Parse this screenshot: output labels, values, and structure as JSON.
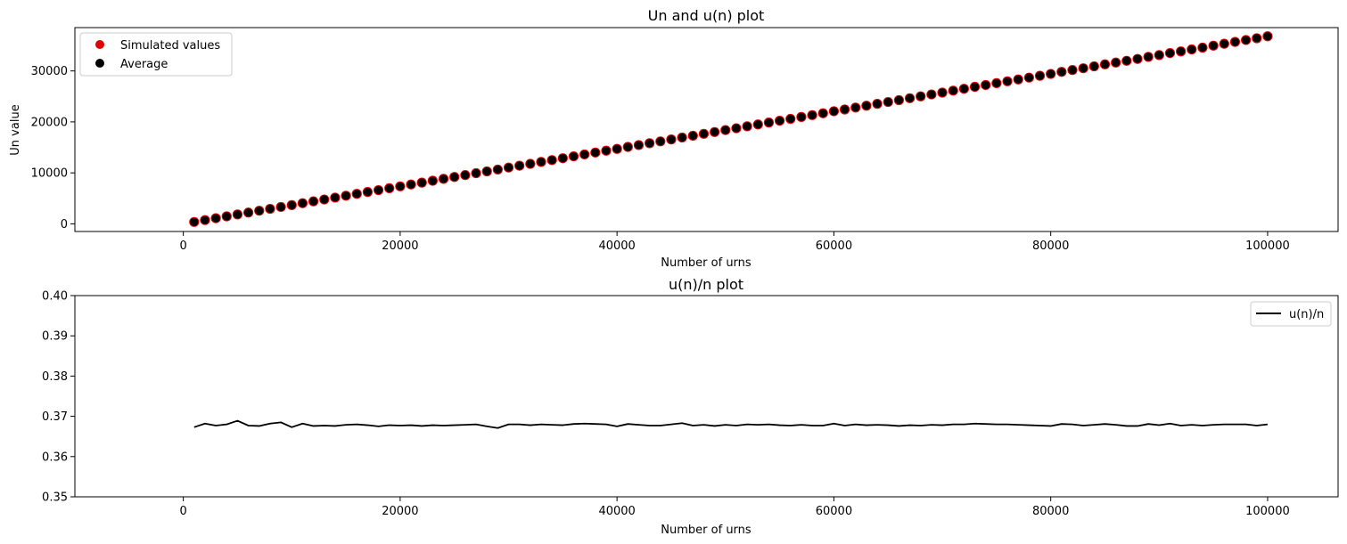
{
  "colors": {
    "simulated": "#e00000",
    "average": "#000000",
    "ratio_line": "#000000"
  },
  "chart_data": [
    {
      "type": "scatter",
      "title": "Un and u(n) plot",
      "xlabel": "Number of urns",
      "ylabel": "Un value",
      "xlim": [
        -10000,
        106500
      ],
      "ylim": [
        -1500,
        38500
      ],
      "xticks": [
        0,
        20000,
        40000,
        60000,
        80000,
        100000
      ],
      "xtick_labels": [
        "0",
        "20000",
        "40000",
        "60000",
        "80000",
        "100000"
      ],
      "yticks": [
        0,
        10000,
        20000,
        30000
      ],
      "ytick_labels": [
        "0",
        "10000",
        "20000",
        "30000"
      ],
      "legend": "top-left",
      "legend_entries": [
        "Simulated values",
        "Average"
      ],
      "x_start": 1000,
      "x_step": 1000,
      "slope": 0.368,
      "series": [
        {
          "name": "Simulated values",
          "color": "#e00000"
        },
        {
          "name": "Average",
          "color": "#000000"
        }
      ]
    },
    {
      "type": "line",
      "title": "u(n)/n plot",
      "xlabel": "Number of urns",
      "ylabel": "",
      "xlim": [
        -10000,
        106500
      ],
      "ylim": [
        0.35,
        0.4
      ],
      "xticks": [
        0,
        20000,
        40000,
        60000,
        80000,
        100000
      ],
      "xtick_labels": [
        "0",
        "20000",
        "40000",
        "60000",
        "80000",
        "100000"
      ],
      "yticks": [
        0.35,
        0.36,
        0.37,
        0.38,
        0.39,
        0.4
      ],
      "ytick_labels": [
        "0.35",
        "0.36",
        "0.37",
        "0.38",
        "0.39",
        "0.40"
      ],
      "legend": "top-right",
      "legend_entries": [
        "u(n)/n"
      ],
      "x_start": 1000,
      "x_step": 1000,
      "series": [
        {
          "name": "u(n)/n",
          "color": "#000000",
          "values": [
            0.3673,
            0.3682,
            0.3677,
            0.368,
            0.3689,
            0.3677,
            0.3676,
            0.3682,
            0.3685,
            0.3673,
            0.3682,
            0.3676,
            0.3677,
            0.3676,
            0.3679,
            0.368,
            0.3678,
            0.3675,
            0.3678,
            0.3677,
            0.3678,
            0.3676,
            0.3678,
            0.3677,
            0.3678,
            0.3679,
            0.368,
            0.3675,
            0.3671,
            0.368,
            0.368,
            0.3678,
            0.368,
            0.3679,
            0.3678,
            0.3681,
            0.3682,
            0.3681,
            0.368,
            0.3675,
            0.3681,
            0.3679,
            0.3677,
            0.3677,
            0.368,
            0.3683,
            0.3677,
            0.3679,
            0.3676,
            0.3679,
            0.3677,
            0.368,
            0.3679,
            0.368,
            0.3678,
            0.3677,
            0.3679,
            0.3677,
            0.3677,
            0.3682,
            0.3677,
            0.368,
            0.3678,
            0.3679,
            0.3678,
            0.3676,
            0.3678,
            0.3677,
            0.3679,
            0.3678,
            0.368,
            0.368,
            0.3682,
            0.3681,
            0.368,
            0.368,
            0.3679,
            0.3678,
            0.3677,
            0.3676,
            0.3681,
            0.368,
            0.3677,
            0.3679,
            0.3681,
            0.3679,
            0.3676,
            0.3676,
            0.3681,
            0.3678,
            0.3682,
            0.3677,
            0.3679,
            0.3677,
            0.3679,
            0.368,
            0.368,
            0.368,
            0.3677,
            0.368
          ]
        }
      ]
    }
  ]
}
